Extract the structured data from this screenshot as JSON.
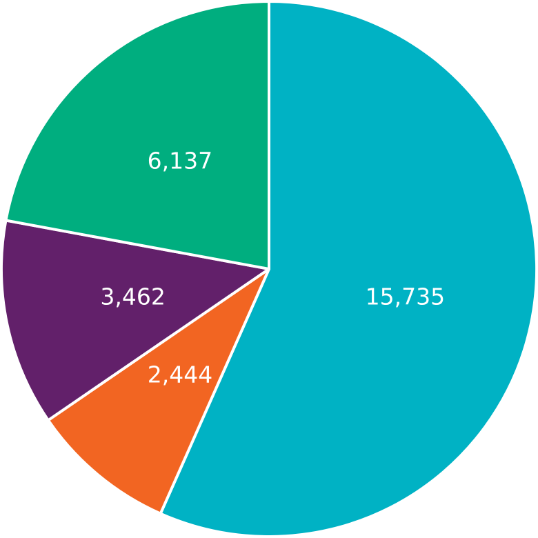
{
  "chart_data": {
    "type": "pie",
    "slices": [
      {
        "label": "15,735",
        "value": 15735,
        "color": "#00b2c4"
      },
      {
        "label": "2,444",
        "value": 2444,
        "color": "#f26522"
      },
      {
        "label": "3,462",
        "value": 3462,
        "color": "#62206a"
      },
      {
        "label": "6,137",
        "value": 6137,
        "color": "#00ae7f"
      }
    ],
    "start": "12 o'clock",
    "direction": "clockwise",
    "separator_color": "#ffffff"
  }
}
